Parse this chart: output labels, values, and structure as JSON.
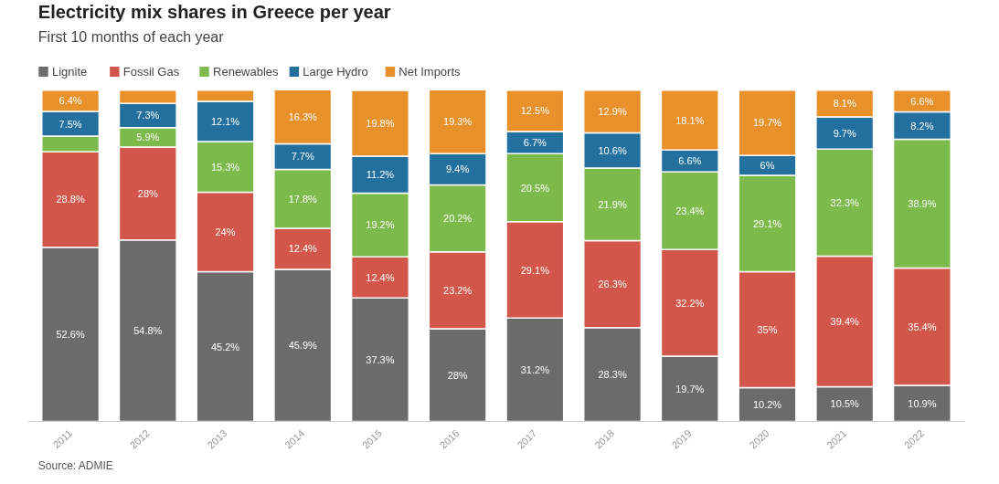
{
  "chart_data": {
    "type": "bar",
    "title": "Electricity mix shares in Greece per year",
    "subtitle": "First 10 months of each year",
    "categories": [
      "2011",
      "2012",
      "2013",
      "2014",
      "2015",
      "2016",
      "2017",
      "2018",
      "2019",
      "2020",
      "2021",
      "2022"
    ],
    "stacked": true,
    "legend": "top left",
    "grid": false,
    "series": [
      {
        "name": "Lignite",
        "color": "#6b6b6b",
        "values": [
          52.6,
          54.8,
          45.2,
          45.9,
          37.3,
          28,
          31.2,
          28.3,
          19.7,
          10.2,
          10.5,
          10.9
        ],
        "value_labels": [
          "52.6%",
          "54.8%",
          "45.2%",
          "45.9%",
          "37.3%",
          "28%",
          "31.2%",
          "28.3%",
          "19.7%",
          "10.2%",
          "10.5%",
          "10.9%"
        ]
      },
      {
        "name": "Fossil Gas",
        "color": "#d2564a",
        "values": [
          28.8,
          28,
          24,
          12.4,
          12.4,
          23.2,
          29.1,
          26.3,
          32.2,
          35,
          39.4,
          35.4
        ],
        "value_labels": [
          "28.8%",
          "28%",
          "24%",
          "12.4%",
          "12.4%",
          "23.2%",
          "29.1%",
          "26.3%",
          "32.2%",
          "35%",
          "39.4%",
          "35.4%"
        ]
      },
      {
        "name": "Renewables",
        "color": "#7cba4c",
        "values": [
          4.7,
          5.9,
          15.3,
          17.8,
          19.2,
          20.2,
          20.5,
          21.9,
          23.4,
          29.1,
          32.3,
          38.9
        ],
        "value_labels": [
          null,
          "5.9%",
          "15.3%",
          "17.8%",
          "19.2%",
          "20.2%",
          "20.5%",
          "21.9%",
          "23.4%",
          "29.1%",
          "32.3%",
          "38.9%"
        ]
      },
      {
        "name": "Large Hydro",
        "color": "#23709f",
        "values": [
          7.5,
          7.3,
          12.1,
          7.7,
          11.2,
          9.4,
          6.7,
          10.6,
          6.6,
          6,
          9.7,
          8.2
        ],
        "value_labels": [
          "7.5%",
          "7.3%",
          "12.1%",
          "7.7%",
          "11.2%",
          "9.4%",
          "6.7%",
          "10.6%",
          "6.6%",
          "6%",
          "9.7%",
          "8.2%"
        ]
      },
      {
        "name": "Net Imports",
        "color": "#e8912b",
        "values": [
          6.4,
          4,
          3.4,
          16.3,
          19.8,
          19.3,
          12.5,
          12.9,
          18.1,
          19.7,
          8.1,
          6.6
        ],
        "value_labels": [
          "6.4%",
          null,
          null,
          "16.3%",
          "19.8%",
          "19.3%",
          "12.5%",
          "12.9%",
          "18.1%",
          "19.7%",
          "8.1%",
          "6.6%"
        ]
      }
    ],
    "annotations": [
      "Source: ADMIE"
    ]
  }
}
